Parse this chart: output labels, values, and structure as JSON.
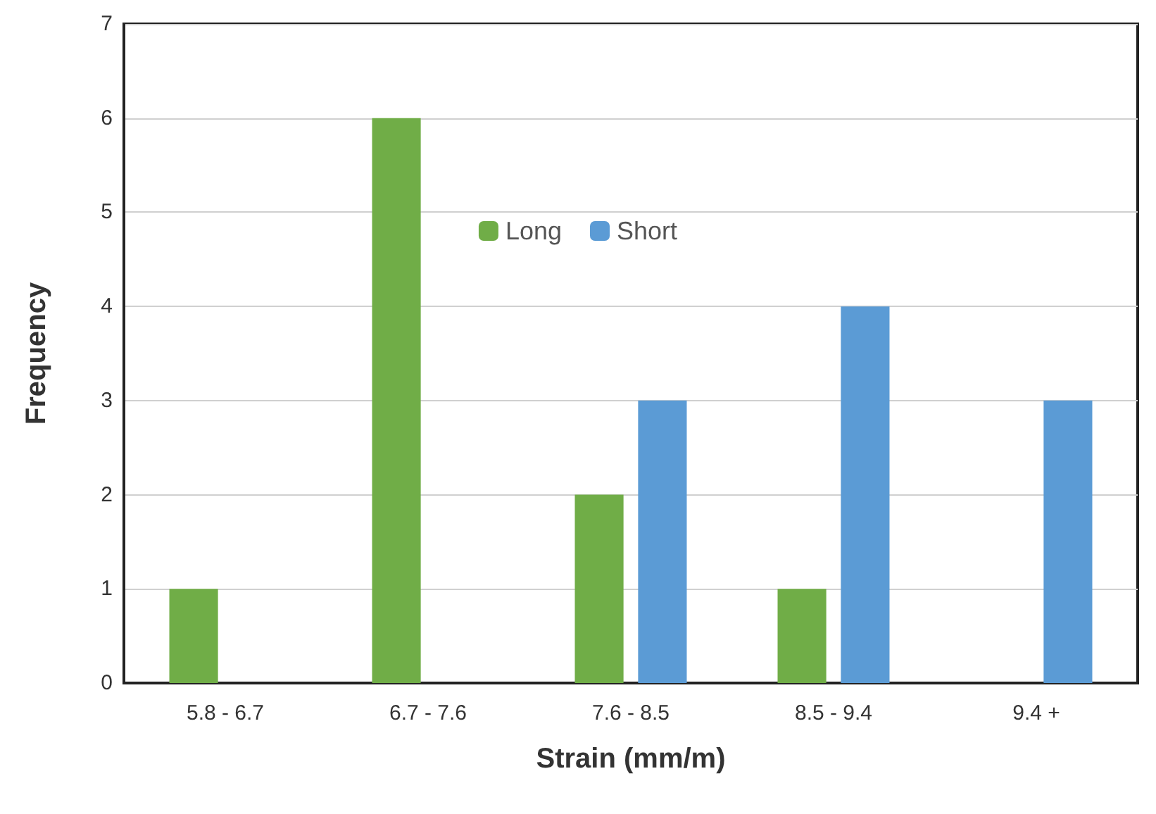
{
  "chart_data": {
    "type": "bar",
    "xlabel": "Strain (mm/m)",
    "ylabel": "Frequency",
    "categories": [
      "5.8 - 6.7",
      "6.7 - 7.6",
      "7.6 - 8.5",
      "8.5 - 9.4",
      "9.4 +"
    ],
    "series": [
      {
        "name": "Long",
        "color": "#70ad47",
        "values": [
          1,
          6,
          2,
          1,
          0
        ]
      },
      {
        "name": "Short",
        "color": "#5b9bd5",
        "values": [
          0,
          0,
          3,
          4,
          3
        ]
      }
    ],
    "ylim": [
      0,
      7
    ],
    "yticks": [
      0,
      1,
      2,
      3,
      4,
      5,
      6,
      7
    ],
    "grid": "y",
    "legend": "top"
  }
}
